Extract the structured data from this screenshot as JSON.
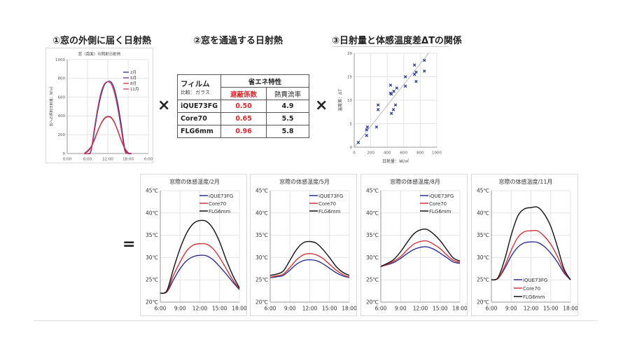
{
  "sections": {
    "s1": "①窓の外側に届く日射熱",
    "s2": "②窓を通過する日射熱",
    "s3": "③日射量と体感温度差ΔTの関係"
  },
  "operators": {
    "times1": "×",
    "times2": "×",
    "equals": "="
  },
  "table": {
    "film_header": "フィルム",
    "film_sub": "比較：ガラス",
    "group_header": "省エネ特性",
    "col1": "遮蔽係数",
    "col2": "熱貫流率",
    "rows": [
      {
        "name": "iQUE73FG",
        "shading": "0.50",
        "u": "4.9"
      },
      {
        "name": "Core70",
        "shading": "0.65",
        "u": "5.5"
      },
      {
        "name": "FLG6mm",
        "shading": "0.96",
        "u": "5.8"
      }
    ]
  },
  "colors": {
    "blue": "#2b2f8f",
    "red": "#d0343a",
    "black": "#111111",
    "purple": "#7a3fa0",
    "pink": "#c43a6a",
    "scatter": "#1f2f8f"
  },
  "chart_data": [
    {
      "id": "solar",
      "type": "line",
      "title": "窓（南面）の照射日射熱",
      "xlabel": "",
      "ylabel": "窓への照射日射量：W/㎡",
      "xlim": [
        0,
        24
      ],
      "ylim": [
        0,
        1000
      ],
      "xticks": [
        0,
        6,
        12,
        18,
        24
      ],
      "xtick_labels": [
        "0:00",
        "6:00",
        "12:00",
        "18:00",
        "0:00"
      ],
      "yticks": [
        0,
        200,
        400,
        600,
        800,
        1000
      ],
      "ytick_labels": [
        "0",
        "200",
        "400",
        "600",
        "800",
        "1000"
      ],
      "grid": true,
      "legend": "top-right",
      "x": [
        5,
        6,
        7,
        8,
        9,
        10,
        11,
        12,
        13,
        14,
        15,
        16,
        17,
        18,
        19
      ],
      "series": [
        {
          "name": "2月",
          "color": "#2b2f8f",
          "values": [
            0,
            0,
            20,
            230,
            450,
            620,
            730,
            765,
            760,
            680,
            520,
            300,
            60,
            0,
            0
          ]
        },
        {
          "name": "5月",
          "color": "#7a3fa0",
          "values": [
            0,
            30,
            70,
            150,
            240,
            320,
            375,
            395,
            385,
            330,
            240,
            140,
            60,
            10,
            0
          ]
        },
        {
          "name": "8月",
          "color": "#d0343a",
          "values": [
            0,
            20,
            60,
            140,
            235,
            315,
            370,
            390,
            380,
            325,
            235,
            135,
            55,
            5,
            0
          ]
        },
        {
          "name": "11月",
          "color": "#c43a6a",
          "values": [
            0,
            0,
            30,
            260,
            480,
            650,
            740,
            765,
            740,
            640,
            470,
            250,
            30,
            0,
            0
          ]
        }
      ]
    },
    {
      "id": "scatter",
      "type": "scatter",
      "title": "",
      "xlabel": "日射量：W/㎡",
      "ylabel": "温度差：ΔT",
      "xlim": [
        0,
        1000
      ],
      "ylim": [
        0,
        20
      ],
      "xticks": [
        0,
        200,
        400,
        600,
        800,
        1000
      ],
      "xtick_labels": [
        "0",
        "200",
        "400",
        "600",
        "800",
        "1000"
      ],
      "yticks": [
        0,
        5,
        10,
        15,
        20
      ],
      "ytick_labels": [
        "0",
        "5",
        "10",
        "15",
        "20"
      ],
      "grid": true,
      "trendline": [
        [
          0,
          0
        ],
        [
          900,
          20
        ]
      ],
      "points": [
        [
          50,
          1
        ],
        [
          150,
          2.5
        ],
        [
          150,
          3.7
        ],
        [
          160,
          4.3
        ],
        [
          270,
          4.3
        ],
        [
          290,
          8
        ],
        [
          290,
          9
        ],
        [
          440,
          13.2
        ],
        [
          440,
          11.5
        ],
        [
          450,
          11.3
        ],
        [
          450,
          7.2
        ],
        [
          475,
          8
        ],
        [
          480,
          11.9
        ],
        [
          500,
          9
        ],
        [
          515,
          12.6
        ],
        [
          620,
          15
        ],
        [
          620,
          13
        ],
        [
          730,
          17.5
        ],
        [
          730,
          15.5
        ],
        [
          750,
          16
        ],
        [
          750,
          14
        ],
        [
          850,
          18.5
        ],
        [
          850,
          16.2
        ]
      ]
    },
    {
      "id": "feb",
      "type": "line",
      "title": "窓際の体感温度/2月",
      "xlim": [
        6,
        18
      ],
      "ylim": [
        20,
        45
      ],
      "xticks": [
        6,
        9,
        12,
        15,
        18
      ],
      "xtick_labels": [
        "6:00",
        "9:00",
        "12:00",
        "15:00",
        "18:00"
      ],
      "yticks": [
        20,
        25,
        30,
        35,
        40,
        45
      ],
      "ytick_labels": [
        "20℃",
        "25℃",
        "30℃",
        "35℃",
        "40℃",
        "45℃"
      ],
      "grid": true,
      "legend": "top-right",
      "x": [
        6,
        7,
        8,
        9,
        10,
        11,
        12,
        13,
        14,
        15,
        16,
        17,
        18
      ],
      "series": [
        {
          "name": "iQUE73FG",
          "color": "#2b2f8f",
          "values": [
            22,
            22.3,
            25,
            27.5,
            29.3,
            30.2,
            30.5,
            30.4,
            29.5,
            28,
            26.3,
            24.5,
            22.8
          ]
        },
        {
          "name": "Core70",
          "color": "#d0343a",
          "values": [
            22,
            22.4,
            26,
            29,
            31.5,
            32.8,
            33.1,
            33,
            32,
            30,
            27.5,
            25,
            23
          ]
        },
        {
          "name": "FLG6mm",
          "color": "#111111",
          "values": [
            22,
            22.6,
            27.5,
            32,
            35.5,
            37.6,
            38.3,
            38.1,
            36.5,
            33.5,
            29.5,
            26,
            23.2
          ]
        }
      ]
    },
    {
      "id": "may",
      "type": "line",
      "title": "窓際の体感温度/5月",
      "xlim": [
        6,
        18
      ],
      "ylim": [
        20,
        45
      ],
      "xticks": [
        6,
        9,
        12,
        15,
        18
      ],
      "xtick_labels": [
        "6:00",
        "9:00",
        "12:00",
        "15:00",
        "18:00"
      ],
      "yticks": [
        20,
        25,
        30,
        35,
        40,
        45
      ],
      "ytick_labels": [
        "20℃",
        "25℃",
        "30℃",
        "35℃",
        "40℃",
        "45℃"
      ],
      "grid": true,
      "legend": "top-right",
      "x": [
        6,
        7,
        8,
        9,
        10,
        11,
        12,
        13,
        14,
        15,
        16,
        17,
        18
      ],
      "series": [
        {
          "name": "iQUE73FG",
          "color": "#2b2f8f",
          "values": [
            25.5,
            25.7,
            26,
            27.2,
            28.5,
            29.3,
            29.5,
            29.3,
            28.6,
            27.6,
            26.6,
            25.9,
            25.5
          ]
        },
        {
          "name": "Core70",
          "color": "#d0343a",
          "values": [
            25.6,
            25.9,
            26.3,
            27.8,
            29.5,
            30.6,
            30.9,
            30.6,
            29.8,
            28.5,
            27.2,
            26.2,
            25.6
          ]
        },
        {
          "name": "FLG6mm",
          "color": "#111111",
          "values": [
            26,
            26.3,
            27,
            29.4,
            31.8,
            33.3,
            33.6,
            33.2,
            31.8,
            30,
            28,
            26.7,
            26
          ]
        }
      ]
    },
    {
      "id": "aug",
      "type": "line",
      "title": "窓際の体感温度/8月",
      "xlim": [
        6,
        18
      ],
      "ylim": [
        20,
        45
      ],
      "xticks": [
        6,
        9,
        12,
        15,
        18
      ],
      "xtick_labels": [
        "6:00",
        "9:00",
        "12:00",
        "15:00",
        "18:00"
      ],
      "yticks": [
        20,
        25,
        30,
        35,
        40,
        45
      ],
      "ytick_labels": [
        "20℃",
        "25℃",
        "30℃",
        "35℃",
        "40℃",
        "45℃"
      ],
      "grid": true,
      "legend": "top-right",
      "x": [
        6,
        7,
        8,
        9,
        10,
        11,
        12,
        13,
        14,
        15,
        16,
        17,
        18
      ],
      "series": [
        {
          "name": "iQUE73FG",
          "color": "#2b2f8f",
          "values": [
            28,
            28.4,
            28.9,
            29.8,
            30.9,
            31.8,
            32.3,
            32.4,
            31.9,
            31,
            30,
            29,
            28.7
          ]
        },
        {
          "name": "Core70",
          "color": "#d0343a",
          "values": [
            28,
            28.5,
            29.2,
            30.2,
            31.7,
            33,
            33.6,
            33.7,
            33,
            32,
            30.6,
            29.4,
            28.9
          ]
        },
        {
          "name": "FLG6mm",
          "color": "#111111",
          "values": [
            28,
            28.7,
            29.6,
            31.3,
            33.4,
            35.3,
            36.2,
            36.3,
            35.3,
            33.8,
            31.8,
            29.9,
            29.2
          ]
        }
      ]
    },
    {
      "id": "nov",
      "type": "line",
      "title": "窓際の体感温度/11月",
      "xlim": [
        6,
        18
      ],
      "ylim": [
        20,
        45
      ],
      "xticks": [
        6,
        9,
        12,
        15,
        18
      ],
      "xtick_labels": [
        "6:00",
        "9:00",
        "12:00",
        "15:00",
        "18:00"
      ],
      "yticks": [
        20,
        25,
        30,
        35,
        40,
        45
      ],
      "ytick_labels": [
        "20℃",
        "25℃",
        "30℃",
        "35℃",
        "40℃",
        "45℃"
      ],
      "grid": true,
      "legend": "bottom-center",
      "x": [
        6,
        7,
        8,
        9,
        10,
        11,
        12,
        13,
        14,
        15,
        16,
        17,
        18
      ],
      "series": [
        {
          "name": "iQUE73FG",
          "color": "#2b2f8f",
          "values": [
            25,
            25.3,
            27.5,
            30.3,
            32.3,
            33.3,
            33.5,
            33.4,
            32.5,
            31,
            29,
            26.6,
            25
          ]
        },
        {
          "name": "Core70",
          "color": "#d0343a",
          "values": [
            25,
            25.3,
            28,
            31.6,
            34.5,
            35.8,
            36,
            36,
            34.8,
            33,
            30.3,
            27,
            25
          ]
        },
        {
          "name": "FLG6mm",
          "color": "#111111",
          "values": [
            25,
            25.5,
            29.5,
            35,
            39.3,
            40.9,
            41.2,
            41.3,
            39.8,
            37,
            32.5,
            27.5,
            25
          ]
        }
      ]
    }
  ]
}
